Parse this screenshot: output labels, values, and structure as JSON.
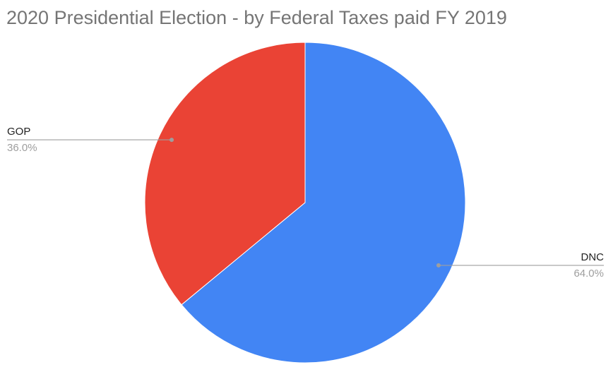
{
  "chart_data": {
    "type": "pie",
    "title": "2020 Presidential Election - by Federal Taxes paid FY 2019",
    "categories": [
      "DNC",
      "GOP"
    ],
    "values": [
      64,
      36
    ],
    "value_labels": [
      "64.0%",
      "36.0%"
    ],
    "colors": [
      "#4285f4",
      "#ea4335"
    ]
  }
}
